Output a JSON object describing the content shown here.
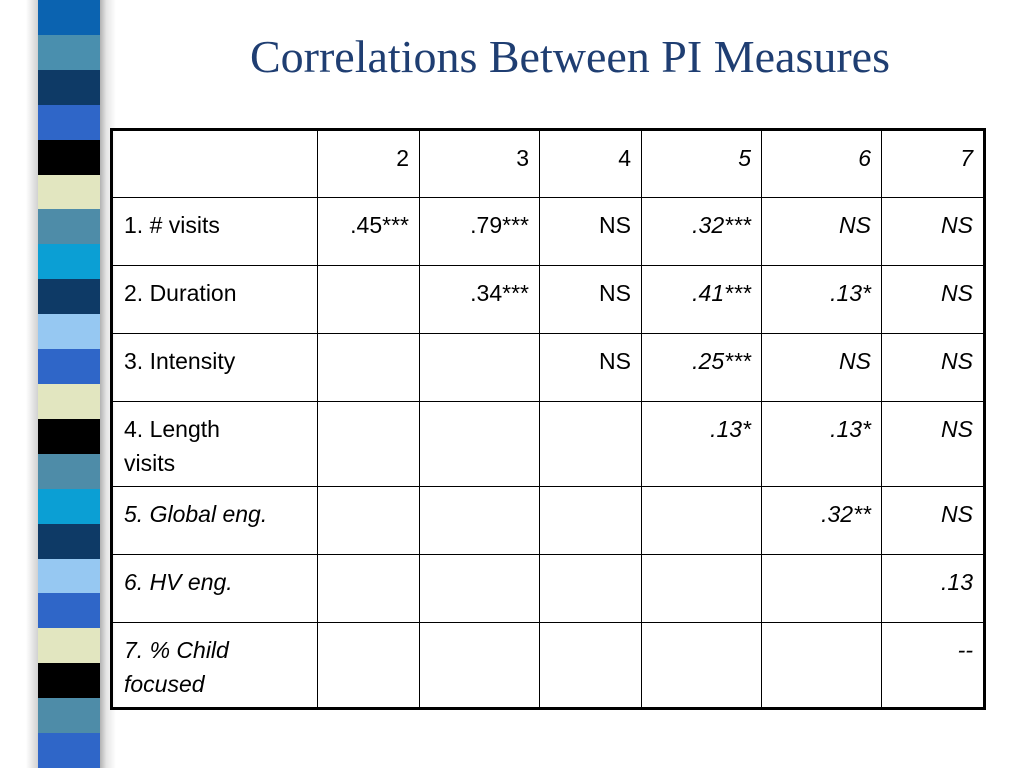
{
  "title": "Correlations Between PI Measures",
  "stripe_colors": [
    "#0b63b0",
    "#4a8fae",
    "#0e3a66",
    "#2f66c8",
    "#000000",
    "#e2e6c0",
    "#4e8ca8",
    "#0b9fd4",
    "#0e3a66",
    "#96c8f2",
    "#2f66c8",
    "#e2e6c0",
    "#000000",
    "#4e8ca8",
    "#0b9fd4",
    "#0e3a66",
    "#96c8f2",
    "#2f66c8",
    "#e2e6c0",
    "#000000",
    "#4e8ca8",
    "#2f66c8"
  ],
  "table": {
    "header": [
      "",
      "2",
      "3",
      "4",
      "5",
      "6",
      "7"
    ],
    "header_italic": [
      false,
      false,
      false,
      false,
      true,
      true,
      true
    ],
    "rows": [
      {
        "label": "1. # visits",
        "label_italic": false,
        "cells": [
          ".45***",
          ".79***",
          "NS",
          ".32***",
          "NS",
          "NS"
        ],
        "italic": [
          false,
          false,
          false,
          true,
          true,
          true
        ]
      },
      {
        "label": "2. Duration",
        "label_italic": false,
        "cells": [
          "",
          ".34***",
          "NS",
          ".41***",
          ".13*",
          "NS"
        ],
        "italic": [
          false,
          false,
          false,
          true,
          true,
          true
        ]
      },
      {
        "label": "3. Intensity",
        "label_italic": false,
        "cells": [
          "",
          "",
          "NS",
          ".25***",
          "NS",
          "NS"
        ],
        "italic": [
          false,
          false,
          false,
          true,
          true,
          true
        ]
      },
      {
        "label": "4. Length visits",
        "label_italic": false,
        "cells": [
          "",
          "",
          "",
          ".13*",
          ".13*",
          "NS"
        ],
        "italic": [
          false,
          false,
          false,
          true,
          true,
          true
        ]
      },
      {
        "label": "5. Global eng.",
        "label_italic": true,
        "cells": [
          "",
          "",
          "",
          "",
          ".32**",
          "NS"
        ],
        "italic": [
          false,
          false,
          false,
          true,
          true,
          true
        ]
      },
      {
        "label": "6. HV eng.",
        "label_italic": true,
        "cells": [
          "",
          "",
          "",
          "",
          "",
          ".13"
        ],
        "italic": [
          false,
          false,
          false,
          true,
          true,
          true
        ]
      },
      {
        "label": "7. % Child focused",
        "label_italic": true,
        "cells": [
          "",
          "",
          "",
          "",
          "",
          "--"
        ],
        "italic": [
          false,
          false,
          false,
          true,
          true,
          true
        ]
      }
    ]
  }
}
